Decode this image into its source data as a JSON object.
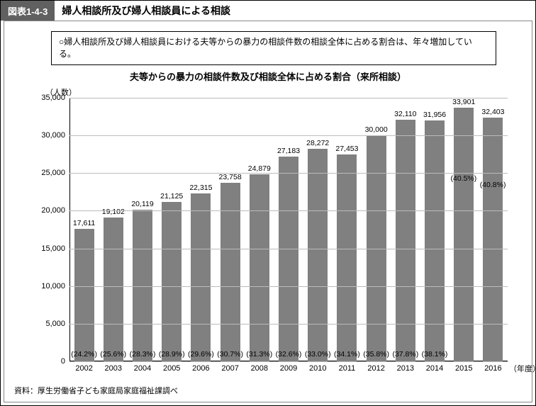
{
  "header": {
    "fig_num": "図表1-4-3",
    "title": "婦人相談所及び婦人相談員による相談"
  },
  "note": "○婦人相談所及び婦人相談員における夫等からの暴力の相談件数の相談全体に占める割合は、年々増加している。",
  "subtitle": "夫等からの暴力の相談件数及び相談全体に占める割合（来所相談）",
  "chart": {
    "type": "bar",
    "y_unit": "（人数）",
    "x_unit": "（年度）",
    "ylim": [
      0,
      35000
    ],
    "ytick_step": 5000,
    "bar_color": "#808080",
    "grid_color": "#bbbbbb",
    "value_fontsize": 10.5,
    "label_fontsize": 11,
    "categories": [
      "2002",
      "2003",
      "2004",
      "2005",
      "2006",
      "2007",
      "2008",
      "2009",
      "2010",
      "2011",
      "2012",
      "2013",
      "2014",
      "2015",
      "2016"
    ],
    "values": [
      17611,
      19102,
      20119,
      21125,
      22315,
      23758,
      24879,
      27183,
      28272,
      27453,
      30000,
      32110,
      31956,
      33901,
      32403
    ],
    "value_labels": [
      "17,611",
      "19,102",
      "20,119",
      "21,125",
      "22,315",
      "23,758",
      "24,879",
      "27,183",
      "28,272",
      "27,453",
      "30,000",
      "32,110",
      "31,956",
      "33,901",
      "32,403"
    ],
    "pct_labels": [
      "(24.2%)",
      "(25.6%)",
      "(28.3%)",
      "(28.9%)",
      "(29.6%)",
      "(30.7%)",
      "(31.3%)",
      "(32.6%)",
      "(33.0%)",
      "(34.1%)",
      "(35.8%)",
      "(37.8%)",
      "(38.1%)",
      "(40.5%)",
      "(40.8%)"
    ]
  },
  "source": "資料：厚生労働省子ども家庭局家庭福祉課調べ"
}
